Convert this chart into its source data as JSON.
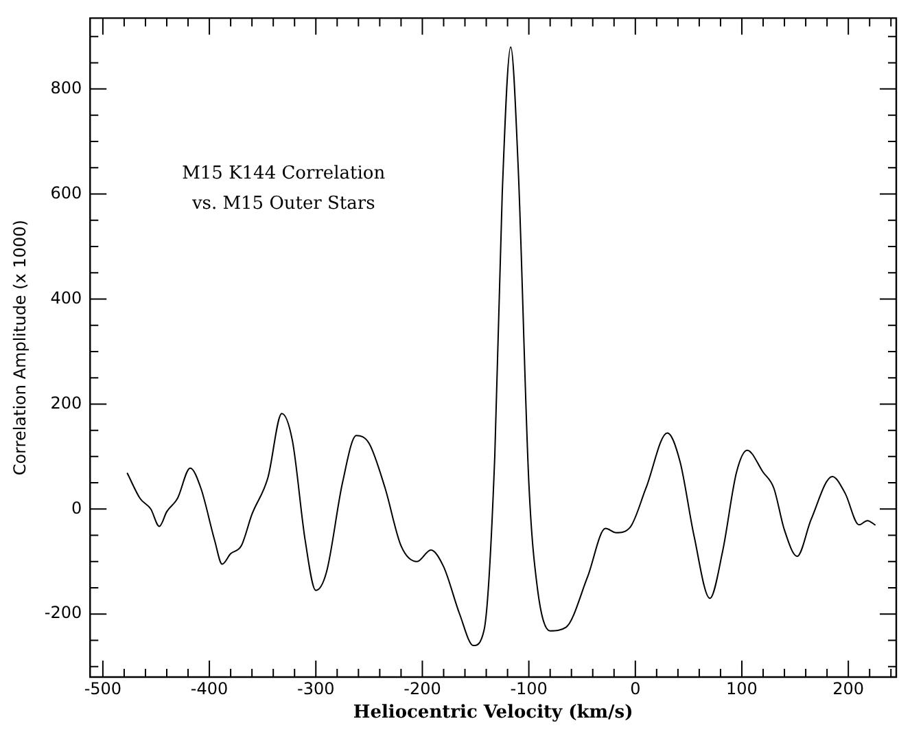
{
  "chart_data": {
    "type": "line",
    "xlabel": "Heliocentric Velocity (km/s)",
    "ylabel": "Correlation Amplitude (x 1000)",
    "annotations": [
      "M15 K144 Correlation",
      "vs. M15 Outer Stars"
    ],
    "x": [
      -477,
      -465,
      -455,
      -447,
      -440,
      -430,
      -418,
      -408,
      -395,
      -388,
      -380,
      -370,
      -360,
      -345,
      -332,
      -322,
      -310,
      -300,
      -290,
      -275,
      -262,
      -250,
      -235,
      -220,
      -205,
      -192,
      -180,
      -165,
      -152,
      -142,
      -132,
      -125,
      -117,
      -110,
      -100,
      -92,
      -80,
      -65,
      -45,
      -28,
      -18,
      -5,
      10,
      30,
      42,
      55,
      70,
      82,
      95,
      105,
      120,
      130,
      140,
      152,
      165,
      185,
      197,
      210,
      218,
      225
    ],
    "series": [
      {
        "color": "#000000",
        "values": [
          68,
          20,
          0,
          -33,
          -5,
          20,
          78,
          40,
          -60,
          -105,
          -85,
          -70,
          -10,
          60,
          182,
          130,
          -60,
          -155,
          -120,
          50,
          140,
          125,
          40,
          -70,
          -100,
          -78,
          -110,
          -200,
          -260,
          -230,
          100,
          600,
          880,
          650,
          50,
          -150,
          -232,
          -225,
          -130,
          -37,
          -45,
          -35,
          40,
          145,
          90,
          -50,
          -170,
          -80,
          70,
          112,
          70,
          40,
          -40,
          -90,
          -20,
          62,
          30,
          -30,
          -22,
          -30
        ]
      }
    ],
    "xlim": [
      -512,
      245
    ],
    "ylim": [
      -320,
      935
    ],
    "xticks": [
      -500,
      {
        "value": -480,
        "label": null
      },
      {
        "value": -460,
        "label": null
      },
      {
        "value": -440,
        "label": null
      },
      {
        "value": -420,
        "label": null
      },
      -400,
      {
        "value": -380,
        "label": null
      },
      {
        "value": -360,
        "label": null
      },
      {
        "value": -340,
        "label": null
      },
      {
        "value": -320,
        "label": null
      },
      -300,
      {
        "value": -280,
        "label": null
      },
      {
        "value": -260,
        "label": null
      },
      {
        "value": -240,
        "label": null
      },
      {
        "value": -220,
        "label": null
      },
      -200,
      {
        "value": -180,
        "label": null
      },
      {
        "value": -160,
        "label": null
      },
      {
        "value": -140,
        "label": null
      },
      {
        "value": -120,
        "label": null
      },
      -100,
      {
        "value": -80,
        "label": null
      },
      {
        "value": -60,
        "label": null
      },
      {
        "value": -40,
        "label": null
      },
      {
        "value": -20,
        "label": null
      },
      0,
      {
        "value": 20,
        "label": null
      },
      {
        "value": 40,
        "label": null
      },
      {
        "value": 60,
        "label": null
      },
      {
        "value": 80,
        "label": null
      },
      100,
      {
        "value": 120,
        "label": null
      },
      {
        "value": 140,
        "label": null
      },
      {
        "value": 160,
        "label": null
      },
      {
        "value": 180,
        "label": null
      },
      200,
      {
        "value": 220,
        "label": null
      },
      {
        "value": 240,
        "label": null
      }
    ],
    "yticks": [
      {
        "value": -300,
        "label": null
      },
      {
        "value": -250,
        "label": null
      },
      -200,
      {
        "value": -150,
        "label": null
      },
      {
        "value": -100,
        "label": null
      },
      {
        "value": -50,
        "label": null
      },
      0,
      {
        "value": 50,
        "label": null
      },
      {
        "value": 100,
        "label": null
      },
      {
        "value": 150,
        "label": null
      },
      200,
      {
        "value": 250,
        "label": null
      },
      {
        "value": 300,
        "label": null
      },
      {
        "value": 350,
        "label": null
      },
      400,
      {
        "value": 450,
        "label": null
      },
      {
        "value": 500,
        "label": null
      },
      {
        "value": 550,
        "label": null
      },
      600,
      {
        "value": 650,
        "label": null
      },
      {
        "value": 700,
        "label": null
      },
      {
        "value": 750,
        "label": null
      },
      800,
      {
        "value": 850,
        "label": null
      },
      {
        "value": 900,
        "label": null
      }
    ],
    "grid": false,
    "legend": false,
    "marker": "none",
    "line_style": "solid"
  }
}
